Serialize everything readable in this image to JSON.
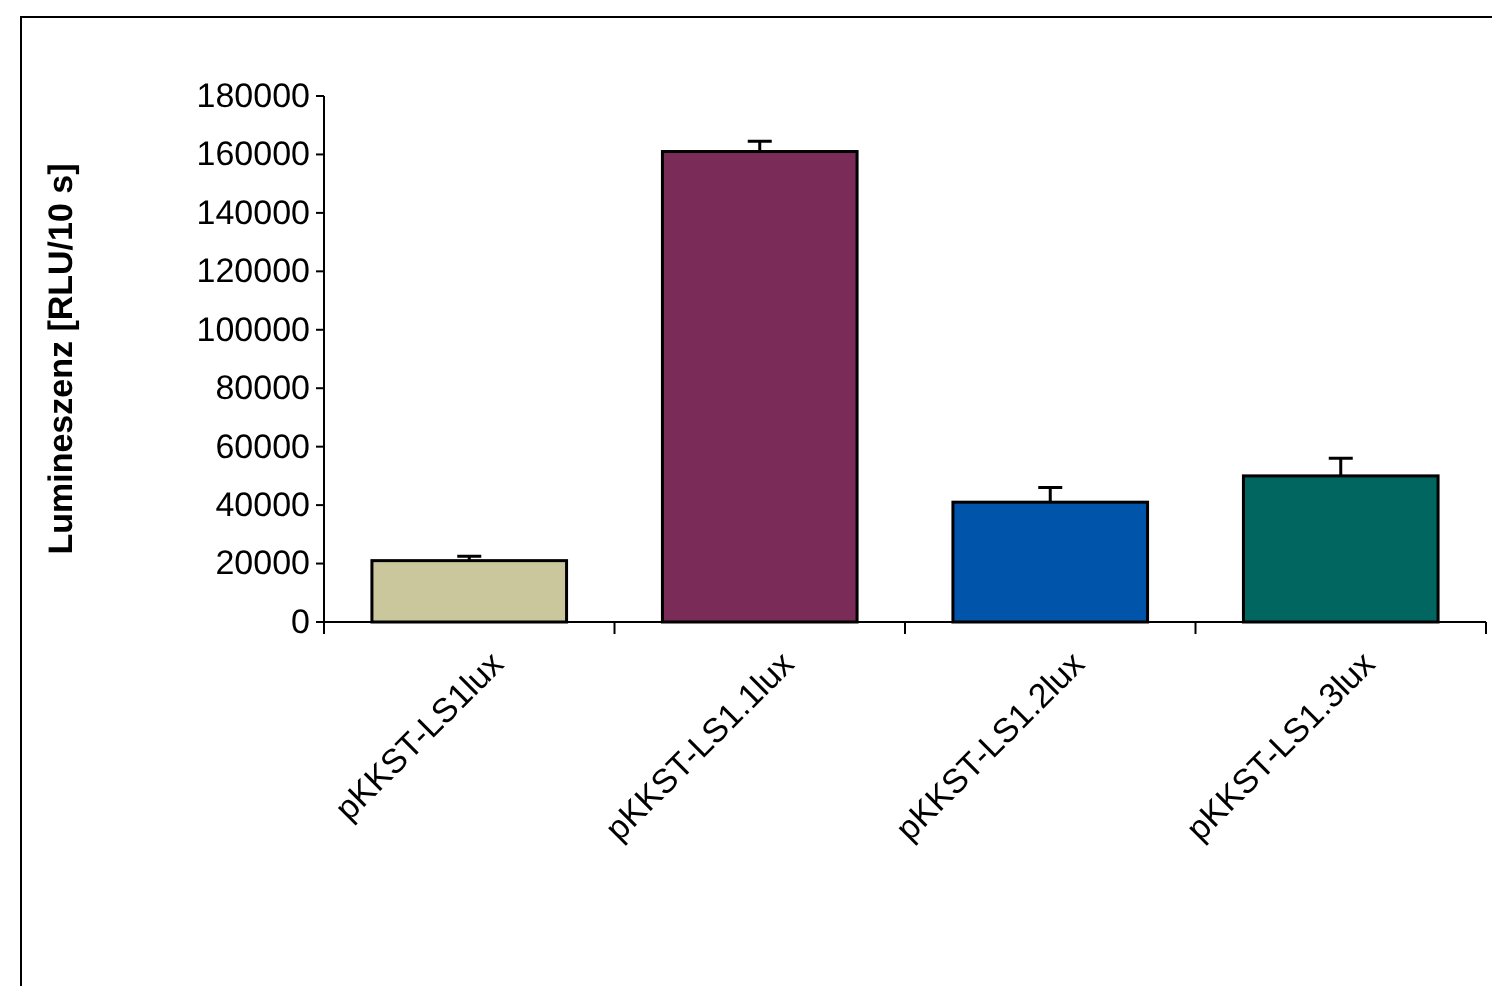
{
  "chart_data": {
    "type": "bar",
    "ylabel": "Lumineszenz [RLU/10 s]",
    "categories": [
      "pKKST-LS1lux",
      "pKKST-LS1.1lux",
      "pKKST-LS1.2lux",
      "pKKST-LS1.3lux"
    ],
    "values": [
      21000,
      161000,
      41000,
      50000
    ],
    "errors": [
      [
        21000,
        22500
      ],
      [
        161000,
        164500
      ],
      [
        41000,
        46000
      ],
      [
        50000,
        56000
      ]
    ],
    "colors": [
      "#c9c79b",
      "#7a2b58",
      "#0055aa",
      "#00665f"
    ],
    "ylim": [
      0,
      180000
    ],
    "yticks": [
      0,
      20000,
      40000,
      60000,
      80000,
      100000,
      120000,
      140000,
      160000,
      180000
    ],
    "grid": false
  }
}
